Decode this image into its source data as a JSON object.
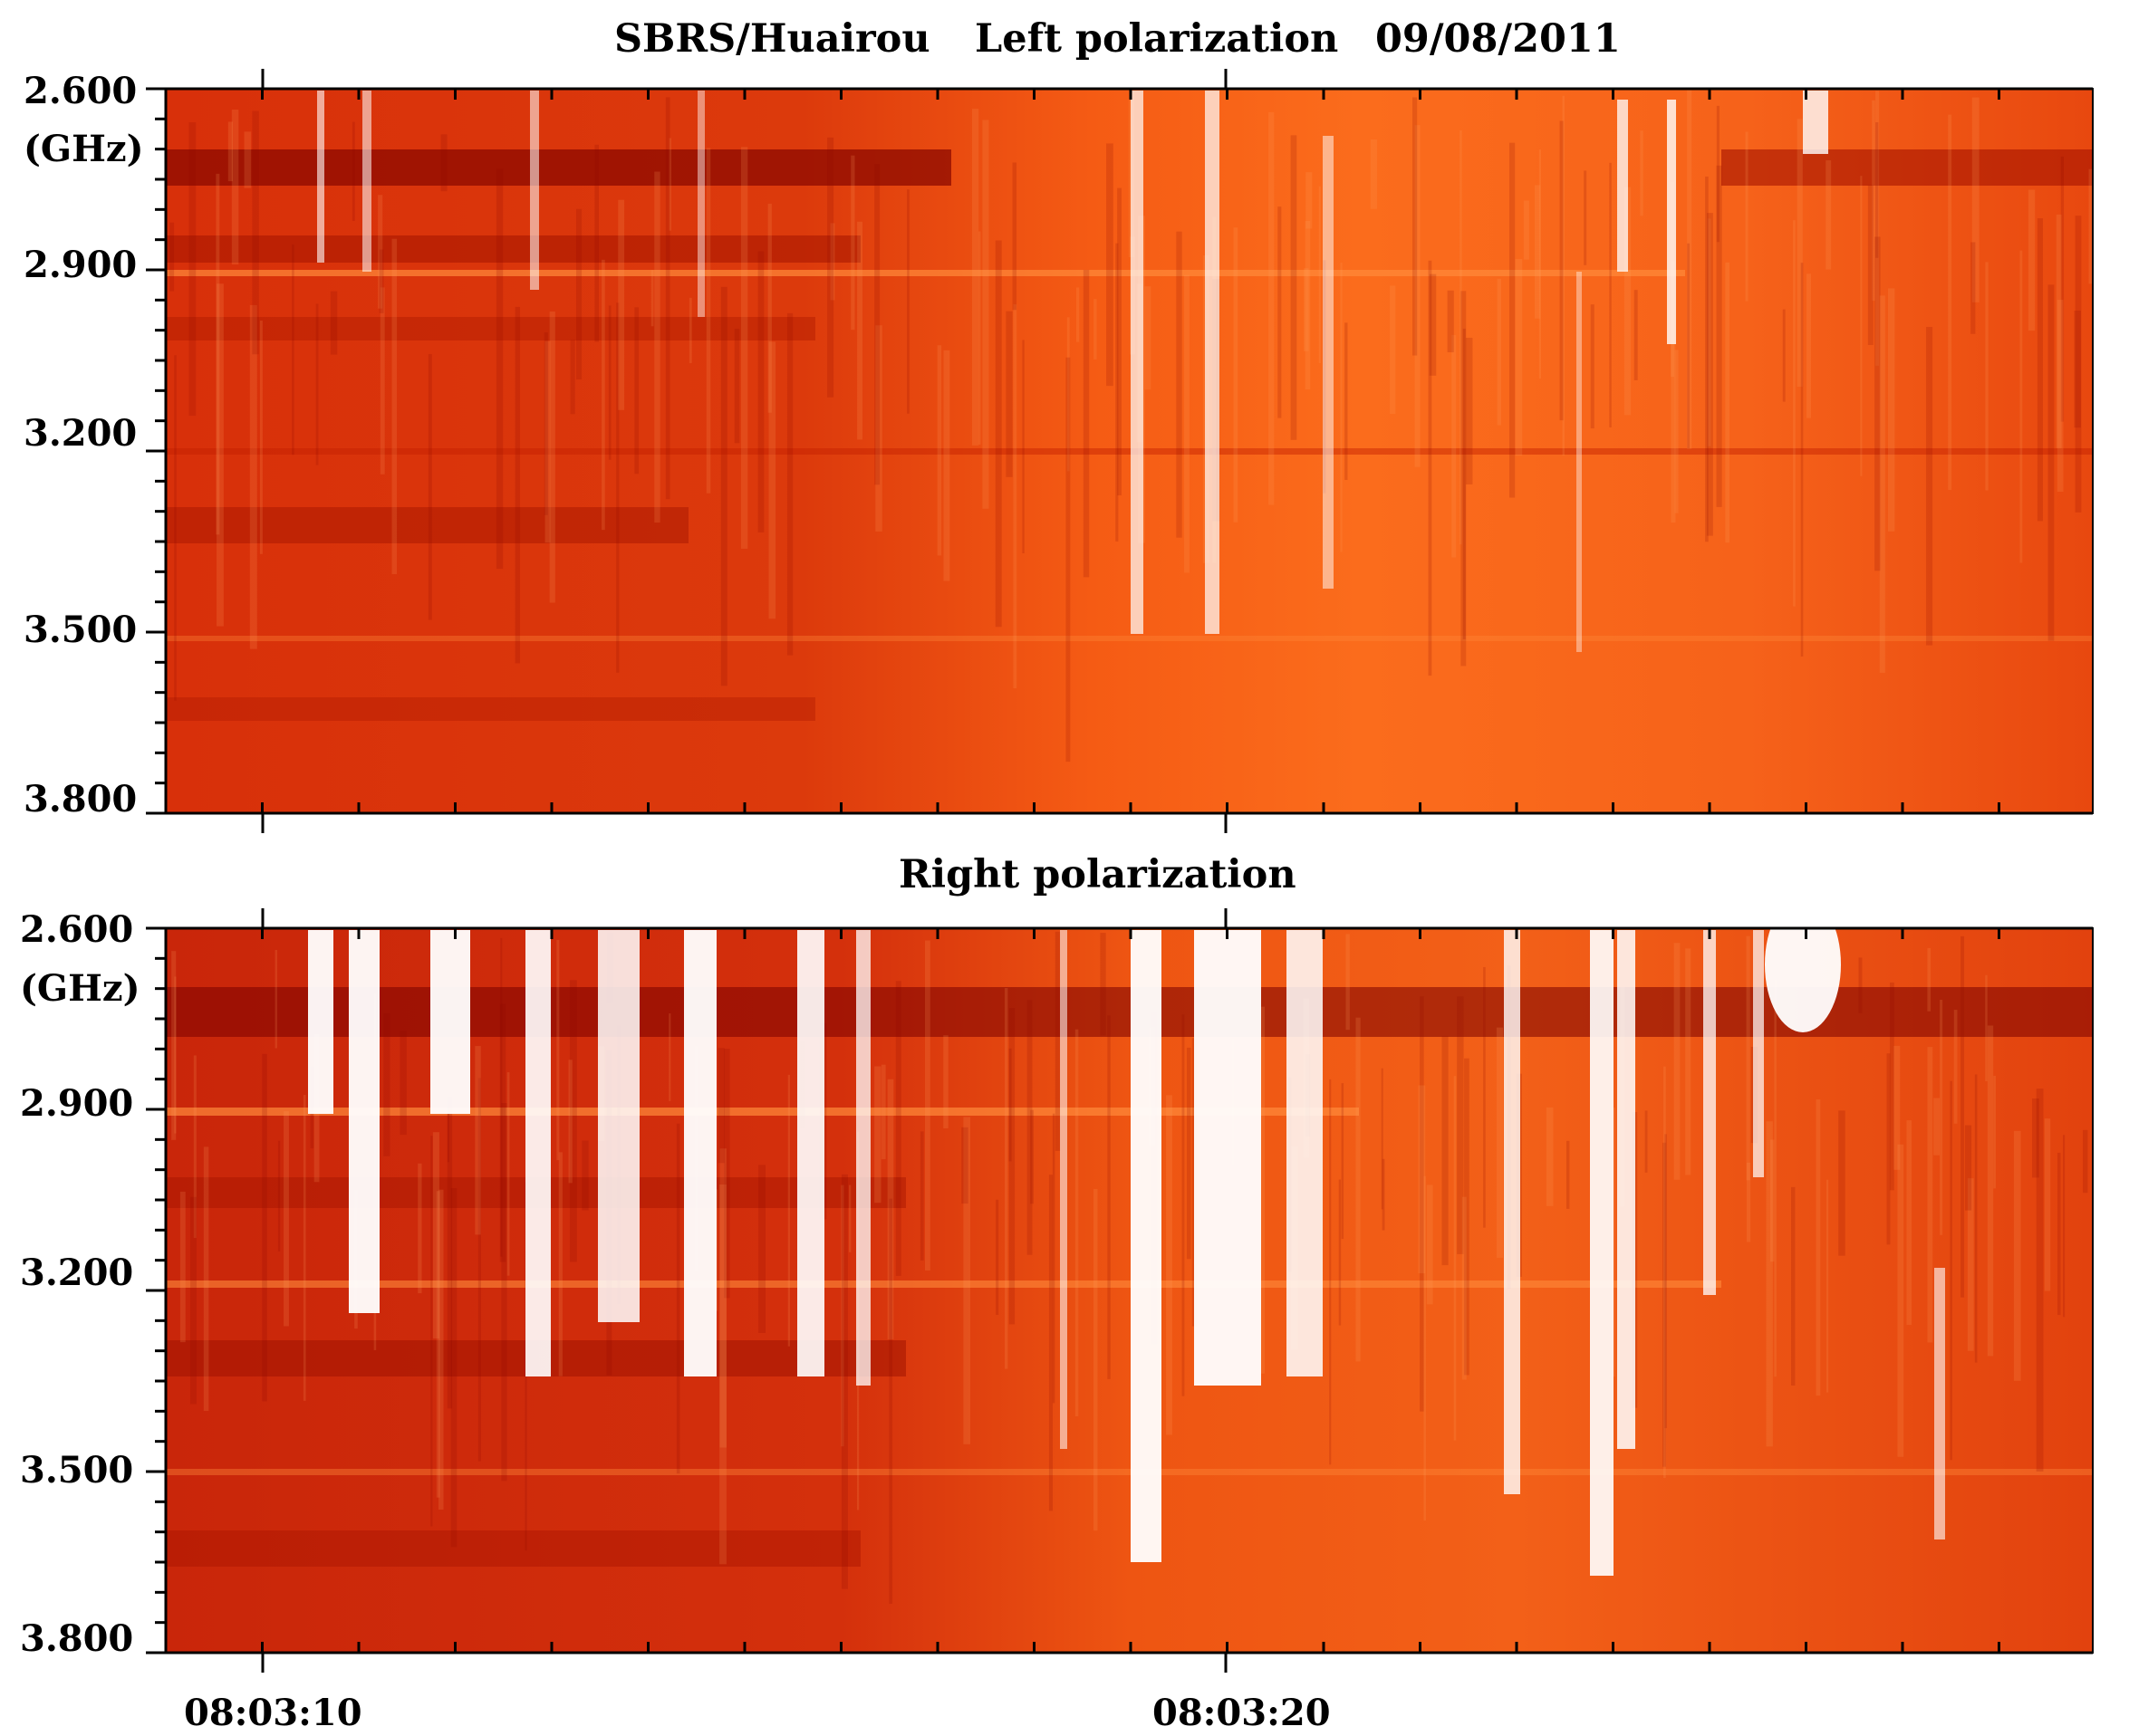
{
  "chart_data": [
    {
      "type": "heatmap",
      "header": {
        "station": "SBRS/Huairou",
        "panel": "Left polarization",
        "date": "09/08/2011"
      },
      "ylabel": "(GHz)",
      "y_ticks": [
        "2.600",
        "2.900",
        "3.200",
        "3.500",
        "3.800"
      ],
      "y_range": [
        2.6,
        3.8
      ],
      "x_ticks": [
        "08:03:10",
        "08:03:20"
      ],
      "colormap": [
        "#7a0000",
        "#b81800",
        "#ee4a0a",
        "#ff7a24",
        "#ffb070",
        "#ffffff"
      ]
    },
    {
      "type": "heatmap",
      "title": "Right polarization",
      "ylabel": "(GHz)",
      "y_ticks": [
        "2.600",
        "2.900",
        "3.200",
        "3.500",
        "3.800"
      ],
      "y_range": [
        2.6,
        3.8
      ],
      "x_ticks": [
        "08:03:10",
        "08:03:20"
      ],
      "colormap": [
        "#7a0000",
        "#b81800",
        "#ee4a0a",
        "#ff7a24",
        "#ffb070",
        "#ffffff"
      ]
    }
  ]
}
